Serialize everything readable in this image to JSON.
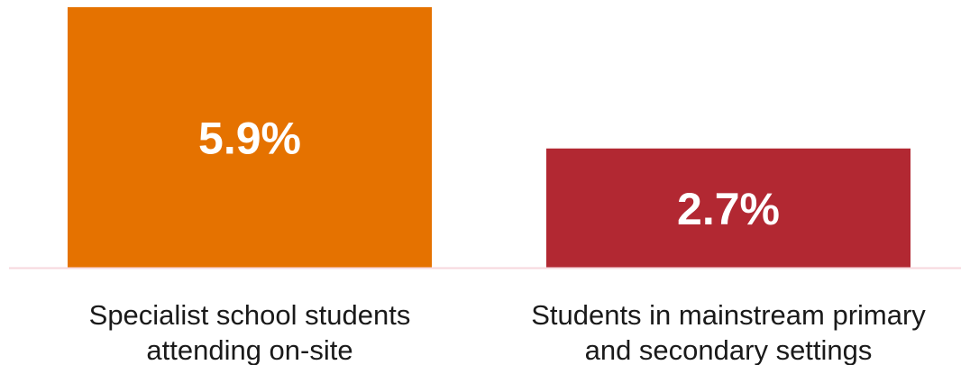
{
  "chart_data": {
    "type": "bar",
    "title": "",
    "xlabel": "",
    "ylabel": "",
    "ylim": [
      0,
      5.9
    ],
    "grid": false,
    "legend": "none",
    "categories": [
      [
        "Specialist school students",
        "attending on-site"
      ],
      [
        "Students in mainstream primary",
        "and secondary settings"
      ]
    ],
    "values": [
      5.9,
      2.7
    ],
    "data_labels": [
      "5.9%",
      "2.7%"
    ],
    "colors": [
      "#E57200",
      "#B22832"
    ],
    "baseline_color": "#F7D7DD"
  }
}
